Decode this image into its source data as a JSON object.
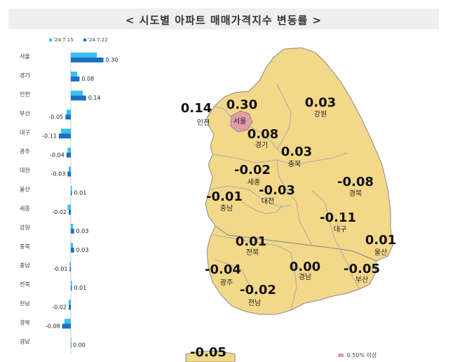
{
  "title": "< 시도별 아파트 매매가격지수 변동률 >",
  "colors": {
    "week1": "#38c0ee",
    "week2": "#1a6fc0",
    "land": "#f3d88a",
    "seoul": "#e79aa7",
    "border": "#888888"
  },
  "chart_data": {
    "type": "bar",
    "orientation": "horizontal",
    "categories": [
      "서울",
      "경기",
      "인천",
      "부산",
      "대구",
      "광주",
      "대전",
      "울산",
      "세종",
      "강원",
      "충북",
      "충남",
      "전북",
      "전남",
      "경북",
      "경남"
    ],
    "series": [
      {
        "name": "'24.7.15",
        "values": [
          0.24,
          0.06,
          0.11,
          -0.04,
          -0.09,
          -0.03,
          -0.02,
          0.01,
          -0.03,
          0.02,
          0.02,
          -0.01,
          0.01,
          -0.02,
          -0.06,
          0.0
        ]
      },
      {
        "name": "'24.7.22",
        "values": [
          0.3,
          0.08,
          0.14,
          -0.05,
          -0.11,
          -0.04,
          -0.03,
          0.01,
          -0.02,
          0.03,
          0.03,
          -0.01,
          0.01,
          -0.02,
          -0.08,
          0.0
        ]
      }
    ],
    "value_labels": [
      "0.30",
      "0.08",
      "0.14",
      "-0.05",
      "-0.11",
      "-0.04",
      "-0.03",
      "0.01",
      "-0.02",
      "0.03",
      "0.03",
      "-0.01",
      "0.01",
      "-0.02",
      "-0.08",
      "0.00"
    ],
    "xlim": [
      -0.15,
      0.35
    ]
  },
  "map": {
    "regions": [
      {
        "key": "incheon",
        "name": "인천",
        "value": "0.14"
      },
      {
        "key": "seoul",
        "name": "서울",
        "value": "0.30"
      },
      {
        "key": "gyeonggi",
        "name": "경기",
        "value": "0.08"
      },
      {
        "key": "gangwon",
        "name": "강원",
        "value": "0.03"
      },
      {
        "key": "chungbuk",
        "name": "충북",
        "value": "0.03"
      },
      {
        "key": "sejong",
        "name": "세종",
        "value": "-0.02"
      },
      {
        "key": "daejeon",
        "name": "대전",
        "value": "-0.03"
      },
      {
        "key": "chungnam",
        "name": "충남",
        "value": "-0.01"
      },
      {
        "key": "gyeongbuk",
        "name": "경북",
        "value": "-0.08"
      },
      {
        "key": "daegu",
        "name": "대구",
        "value": "-0.11"
      },
      {
        "key": "jeonbuk",
        "name": "전북",
        "value": "0.01"
      },
      {
        "key": "ulsan",
        "name": "울산",
        "value": "0.01"
      },
      {
        "key": "gwangju",
        "name": "광주",
        "value": "-0.04"
      },
      {
        "key": "gyeongnam",
        "name": "경남",
        "value": "0.00"
      },
      {
        "key": "busan",
        "name": "부산",
        "value": "-0.05"
      },
      {
        "key": "jeonnam",
        "name": "전남",
        "value": "-0.02"
      },
      {
        "key": "jeju",
        "name": "",
        "value": "-0.05"
      }
    ],
    "legend_label": "0.50% 이상"
  }
}
